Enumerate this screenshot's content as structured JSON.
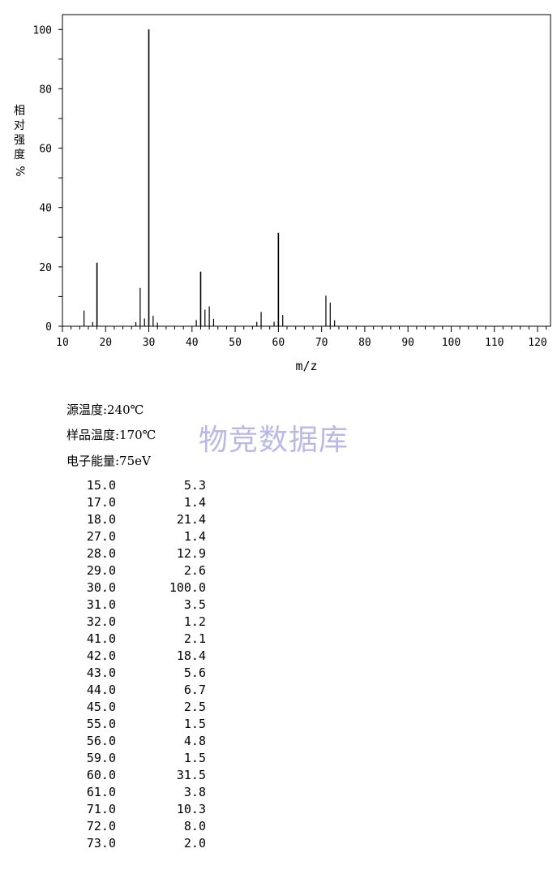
{
  "chart_data": {
    "type": "bar",
    "xlabel": "m/z",
    "ylabel_chars": [
      "相",
      "对",
      "强",
      "度",
      "%"
    ],
    "xlim": [
      10,
      123
    ],
    "ylim": [
      0,
      105
    ],
    "x_ticks": [
      10,
      20,
      30,
      40,
      50,
      60,
      70,
      80,
      90,
      100,
      110,
      120
    ],
    "y_ticks": [
      0,
      20,
      40,
      60,
      80,
      100
    ],
    "grid": false,
    "peaks": [
      {
        "x": 15,
        "y": 5.3
      },
      {
        "x": 17,
        "y": 1.4
      },
      {
        "x": 18,
        "y": 21.4
      },
      {
        "x": 27,
        "y": 1.4
      },
      {
        "x": 28,
        "y": 12.9
      },
      {
        "x": 29,
        "y": 2.6
      },
      {
        "x": 30,
        "y": 100.0
      },
      {
        "x": 31,
        "y": 3.5
      },
      {
        "x": 32,
        "y": 1.2
      },
      {
        "x": 41,
        "y": 2.1
      },
      {
        "x": 42,
        "y": 18.4
      },
      {
        "x": 43,
        "y": 5.6
      },
      {
        "x": 44,
        "y": 6.7
      },
      {
        "x": 45,
        "y": 2.5
      },
      {
        "x": 55,
        "y": 1.5
      },
      {
        "x": 56,
        "y": 4.8
      },
      {
        "x": 59,
        "y": 1.5
      },
      {
        "x": 60,
        "y": 31.5
      },
      {
        "x": 61,
        "y": 3.8
      },
      {
        "x": 71,
        "y": 10.3
      },
      {
        "x": 72,
        "y": 8.0
      },
      {
        "x": 73,
        "y": 2.0
      }
    ]
  },
  "conditions": {
    "source_temp": "源温度:240℃",
    "sample_temp": "样品温度:170℃",
    "electron_energy": "电子能量:75eV"
  },
  "watermark": "物竞数据库",
  "peak_table": [
    {
      "mz": "15.0",
      "intensity": "5.3"
    },
    {
      "mz": "17.0",
      "intensity": "1.4"
    },
    {
      "mz": "18.0",
      "intensity": "21.4"
    },
    {
      "mz": "27.0",
      "intensity": "1.4"
    },
    {
      "mz": "28.0",
      "intensity": "12.9"
    },
    {
      "mz": "29.0",
      "intensity": "2.6"
    },
    {
      "mz": "30.0",
      "intensity": "100.0"
    },
    {
      "mz": "31.0",
      "intensity": "3.5"
    },
    {
      "mz": "32.0",
      "intensity": "1.2"
    },
    {
      "mz": "41.0",
      "intensity": "2.1"
    },
    {
      "mz": "42.0",
      "intensity": "18.4"
    },
    {
      "mz": "43.0",
      "intensity": "5.6"
    },
    {
      "mz": "44.0",
      "intensity": "6.7"
    },
    {
      "mz": "45.0",
      "intensity": "2.5"
    },
    {
      "mz": "55.0",
      "intensity": "1.5"
    },
    {
      "mz": "56.0",
      "intensity": "4.8"
    },
    {
      "mz": "59.0",
      "intensity": "1.5"
    },
    {
      "mz": "60.0",
      "intensity": "31.5"
    },
    {
      "mz": "61.0",
      "intensity": "3.8"
    },
    {
      "mz": "71.0",
      "intensity": "10.3"
    },
    {
      "mz": "72.0",
      "intensity": "8.0"
    },
    {
      "mz": "73.0",
      "intensity": "2.0"
    }
  ]
}
